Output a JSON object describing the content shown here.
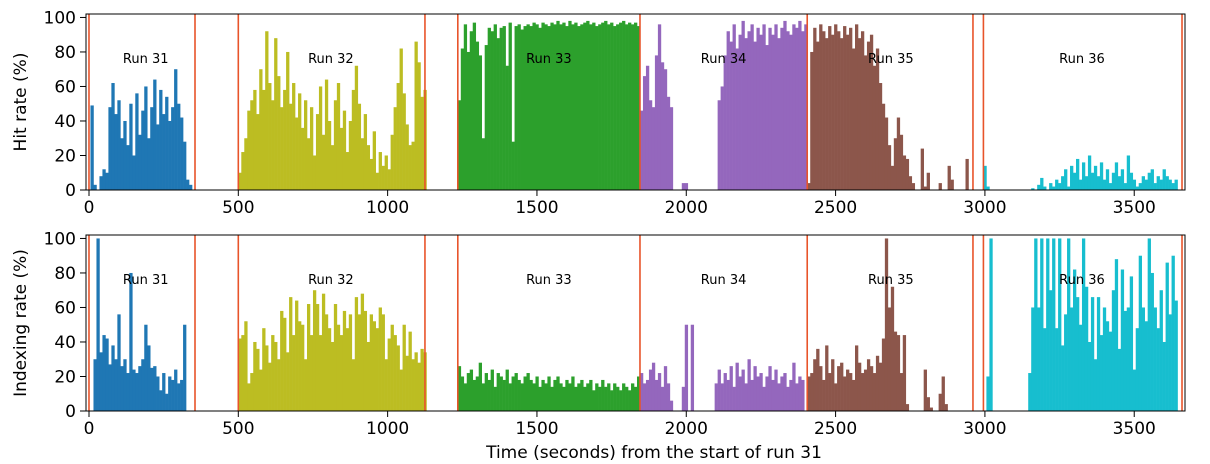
{
  "chart_data": {
    "type": "bar",
    "xlabel": "Time (seconds) from the start of run 31",
    "xlim": [
      -10,
      3670
    ],
    "xticks": [
      0,
      500,
      1000,
      1500,
      2000,
      2500,
      3000,
      3500
    ],
    "bin_width_s": 10,
    "run_boundaries": [
      0,
      355,
      500,
      1125,
      1235,
      1845,
      2405,
      2960,
      2995,
      3660
    ],
    "runs": [
      {
        "label": "Run 31",
        "start": 0,
        "end": 355,
        "color": "#1f77b4",
        "label_x": 190
      },
      {
        "label": "Run 32",
        "start": 500,
        "end": 1125,
        "color": "#bcbd22",
        "label_x": 810
      },
      {
        "label": "Run 33",
        "start": 1235,
        "end": 1845,
        "color": "#2ca02c",
        "label_x": 1540
      },
      {
        "label": "Run 34",
        "start": 1845,
        "end": 2405,
        "color": "#9467bd",
        "label_x": 2125
      },
      {
        "label": "Run 35",
        "start": 2405,
        "end": 2960,
        "color": "#8c564b",
        "label_x": 2685
      },
      {
        "label": "Run 36",
        "start": 2995,
        "end": 3660,
        "color": "#17becf",
        "label_x": 3325
      }
    ],
    "panels": [
      {
        "ylabel": "Hit rate (%)",
        "ylim": [
          0,
          102
        ],
        "yticks": [
          0,
          20,
          40,
          60,
          80,
          100
        ],
        "series": [
          {
            "run": "Run 31",
            "start": 5,
            "values": [
              49,
              3,
              0,
              8,
              12,
              10,
              48,
              62,
              44,
              52,
              30,
              40,
              26,
              50,
              20,
              56,
              32,
              46,
              60,
              30,
              48,
              64,
              38,
              58,
              44,
              54,
              40,
              48,
              70,
              50,
              42,
              28,
              6,
              3
            ]
          },
          {
            "run": "Run 32",
            "start": 500,
            "values": [
              10,
              22,
              30,
              46,
              52,
              58,
              44,
              70,
              58,
              92,
              62,
              52,
              88,
              66,
              48,
              58,
              80,
              50,
              62,
              42,
              56,
              36,
              52,
              30,
              48,
              20,
              44,
              60,
              32,
              64,
              40,
              26,
              52,
              62,
              36,
              46,
              22,
              40,
              58,
              72,
              50,
              30,
              44,
              26,
              18,
              34,
              10,
              22,
              14,
              20,
              12,
              32,
              48,
              62,
              82,
              56,
              38,
              26,
              28,
              86,
              74,
              54,
              58
            ]
          },
          {
            "run": "Run 33",
            "start": 1235,
            "values": [
              52,
              82,
              96,
              80,
              92,
              97,
              86,
              78,
              30,
              84,
              94,
              92,
              96,
              88,
              94,
              95,
              72,
              97,
              28,
              95,
              96,
              93,
              95,
              96,
              95,
              97,
              96,
              94,
              97,
              96,
              95,
              97,
              96,
              98,
              96,
              97,
              95,
              98,
              96,
              97,
              95,
              96,
              97,
              98,
              96,
              97,
              95,
              96,
              97,
              98,
              96,
              97,
              95,
              96,
              97,
              98,
              96,
              97,
              96,
              97,
              95
            ]
          },
          {
            "run": "Run 34",
            "start": 1845,
            "values": [
              46,
              66,
              72,
              52,
              48,
              78,
              96,
              74,
              70,
              54,
              48,
              0,
              0,
              0,
              4,
              4,
              0,
              0,
              0,
              0,
              0,
              0,
              0,
              0,
              0,
              0,
              52,
              60,
              78,
              92,
              86,
              96,
              82,
              90,
              98,
              88,
              92,
              96,
              86,
              94,
              90,
              96,
              84,
              94,
              90,
              96,
              88,
              94,
              98,
              92,
              90,
              96,
              94,
              98,
              92,
              96
            ]
          },
          {
            "run": "Run 35",
            "start": 2405,
            "values": [
              4,
              80,
              94,
              86,
              96,
              92,
              88,
              95,
              90,
              96,
              92,
              88,
              95,
              90,
              94,
              82,
              96,
              88,
              92,
              78,
              86,
              90,
              72,
              82,
              62,
              50,
              42,
              26,
              14,
              30,
              42,
              32,
              20,
              18,
              8,
              4,
              0,
              0,
              24,
              2,
              10,
              0,
              0,
              0,
              4,
              0,
              0,
              14,
              6,
              0,
              0,
              0,
              0,
              18,
              0
            ]
          },
          {
            "run": "Run 36",
            "start": 2995,
            "values": [
              14,
              2,
              0,
              0,
              0,
              0,
              0,
              0,
              0,
              0,
              0,
              0,
              0,
              0,
              0,
              0,
              1,
              0,
              3,
              7,
              2,
              0,
              4,
              2,
              6,
              4,
              8,
              12,
              2,
              14,
              10,
              18,
              6,
              16,
              8,
              20,
              10,
              14,
              8,
              16,
              6,
              12,
              4,
              10,
              16,
              8,
              12,
              4,
              20,
              10,
              6,
              2,
              4,
              8,
              6,
              10,
              12,
              4,
              8,
              6,
              12,
              8,
              6,
              4,
              6
            ]
          }
        ]
      },
      {
        "ylabel": "Indexing rate (%)",
        "ylim": [
          0,
          102
        ],
        "yticks": [
          0,
          20,
          40,
          60,
          80,
          100
        ],
        "series": [
          {
            "run": "Run 31",
            "start": 15,
            "values": [
              30,
              100,
              34,
              44,
              42,
              27,
              38,
              30,
              56,
              26,
              30,
              22,
              80,
              24,
              22,
              26,
              30,
              50,
              38,
              25,
              26,
              20,
              12,
              22,
              10,
              20,
              18,
              24,
              16,
              18,
              50
            ]
          },
          {
            "run": "Run 32",
            "start": 500,
            "values": [
              42,
              44,
              52,
              16,
              22,
              40,
              36,
              24,
              48,
              38,
              28,
              44,
              40,
              30,
              58,
              54,
              34,
              66,
              44,
              64,
              52,
              50,
              30,
              62,
              44,
              70,
              62,
              44,
              68,
              56,
              48,
              40,
              62,
              50,
              44,
              58,
              48,
              56,
              30,
              66,
              56,
              68,
              58,
              40,
              56,
              52,
              48,
              60,
              56,
              30,
              42,
              50,
              44,
              38,
              24,
              50,
              32,
              46,
              30,
              34,
              28,
              36,
              34
            ]
          },
          {
            "run": "Run 33",
            "start": 1235,
            "values": [
              26,
              20,
              16,
              22,
              24,
              18,
              20,
              28,
              16,
              22,
              18,
              24,
              14,
              22,
              20,
              18,
              24,
              16,
              20,
              22,
              18,
              16,
              20,
              22,
              18,
              16,
              20,
              14,
              18,
              16,
              20,
              14,
              18,
              20,
              16,
              14,
              18,
              16,
              20,
              14,
              16,
              18,
              14,
              16,
              18,
              12,
              16,
              14,
              18,
              14,
              16,
              12,
              16,
              14,
              12,
              16,
              14,
              12,
              16,
              14,
              20
            ]
          },
          {
            "run": "Run 34",
            "start": 1845,
            "values": [
              22,
              16,
              18,
              24,
              28,
              18,
              22,
              14,
              26,
              16,
              6,
              0,
              0,
              0,
              14,
              50,
              0,
              50,
              0,
              0,
              0,
              0,
              0,
              0,
              0,
              16,
              24,
              16,
              22,
              18,
              26,
              14,
              28,
              20,
              24,
              16,
              30,
              18,
              26,
              20,
              22,
              14,
              20,
              26,
              18,
              24,
              16,
              20,
              22,
              14,
              18,
              28,
              16,
              20,
              18
            ]
          },
          {
            "run": "Run 35",
            "start": 2405,
            "values": [
              20,
              22,
              30,
              36,
              26,
              18,
              38,
              22,
              30,
              16,
              26,
              28,
              20,
              24,
              22,
              18,
              38,
              28,
              22,
              24,
              30,
              26,
              22,
              32,
              28,
              42,
              100,
              60,
              72,
              46,
              44,
              22,
              44,
              4,
              0,
              0,
              0,
              0,
              0,
              24,
              8,
              2,
              0,
              0,
              10,
              20,
              4,
              0,
              0,
              0,
              0,
              0,
              0,
              0,
              0
            ]
          },
          {
            "run": "Run 36",
            "start": 2995,
            "values": [
              0,
              20,
              100,
              0,
              0,
              0,
              0,
              0,
              0,
              0,
              0,
              0,
              0,
              0,
              0,
              22,
              60,
              100,
              60,
              100,
              48,
              100,
              70,
              100,
              48,
              100,
              38,
              56,
              100,
              60,
              82,
              66,
              50,
              100,
              72,
              40,
              66,
              30,
              66,
              44,
              60,
              52,
              46,
              70,
              88,
              36,
              82,
              58,
              60,
              78,
              24,
              48,
              90,
              60,
              52,
              100,
              80,
              60,
              48,
              70,
              40,
              86,
              56,
              90,
              64
            ]
          }
        ]
      }
    ]
  }
}
